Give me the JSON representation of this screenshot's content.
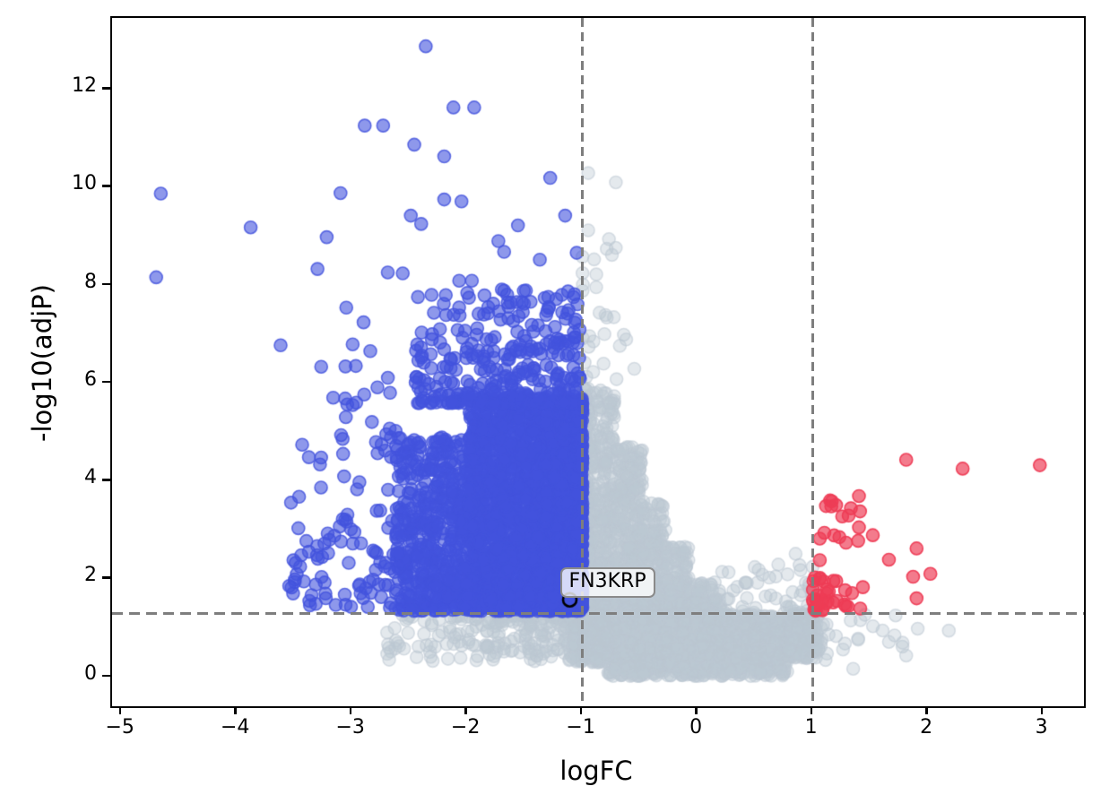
{
  "chart_data": {
    "type": "scatter",
    "title": "",
    "xlabel": "logFC",
    "ylabel": "-log10(adjP)",
    "xlim": [
      -5.083,
      3.353
    ],
    "ylim": [
      -0.595,
      13.47
    ],
    "grid": false,
    "legend": "none",
    "x_tick_values": [
      -5,
      -4,
      -3,
      -2,
      -1,
      0,
      1,
      2,
      3
    ],
    "x_tick_labels": [
      "−5",
      "−4",
      "−3",
      "−2",
      "−1",
      "0",
      "1",
      "2",
      "3"
    ],
    "y_tick_values": [
      0,
      2,
      4,
      6,
      8,
      10,
      12
    ],
    "y_tick_labels": [
      "0",
      "2",
      "4",
      "6",
      "8",
      "10",
      "12"
    ],
    "thresholds": {
      "vertical_logfc": [
        -1,
        1
      ],
      "horizontal_neglog10_adjp": 1.301,
      "line_color": "#7e7e7e",
      "line_style": "dashed"
    },
    "annotation": {
      "label": "FN3KRP",
      "x": -1.11,
      "y": 1.58,
      "marker": "open-black-circle"
    },
    "marker_radius_px": 7,
    "colors": {
      "down_regulated": "#4353dd",
      "up_regulated": "#ee3c55",
      "non_significant": "#bcc7d2",
      "axes": "#000000"
    },
    "series": [
      {
        "name": "non-significant",
        "color": "#bcc7d2",
        "fill_alpha": 0.4,
        "edge_alpha": 0.55,
        "clusters": [
          {
            "n": 500,
            "x": [
              -1.0,
              -0.72
            ],
            "y": [
              1.3,
              5.9
            ],
            "xexp": 1.3,
            "xdir": "min",
            "yexp": 1.55,
            "ydir": "min"
          },
          {
            "n": 330,
            "x": [
              -0.72,
              -0.48
            ],
            "y": [
              1.3,
              4.7
            ],
            "xexp": 1.0,
            "xdir": "min",
            "yexp": 1.5,
            "ydir": "min"
          },
          {
            "n": 200,
            "x": [
              -0.48,
              -0.28
            ],
            "y": [
              1.3,
              3.6
            ],
            "xexp": 1.0,
            "xdir": "min",
            "yexp": 1.5,
            "ydir": "min"
          },
          {
            "n": 130,
            "x": [
              -0.28,
              -0.08
            ],
            "y": [
              1.3,
              2.7
            ],
            "xexp": 1.0,
            "xdir": "min",
            "yexp": 1.4,
            "ydir": "min"
          },
          {
            "n": 80,
            "x": [
              -0.08,
              0.2
            ],
            "y": [
              1.3,
              1.95
            ],
            "xexp": 1.0,
            "xdir": "min",
            "yexp": 1.3,
            "ydir": "min"
          },
          {
            "n": 26,
            "x": [
              -1.0,
              -0.5
            ],
            "y": [
              5.9,
              9.3
            ],
            "xexp": 1.8,
            "xdir": "min",
            "yexp": 1.6,
            "ydir": "min"
          },
          {
            "n": 1300,
            "x": [
              -0.78,
              0.78
            ],
            "y": [
              0.02,
              1.28
            ],
            "xexp": 1.0,
            "xdir": "min",
            "yexp": 1.0,
            "ydir": "min"
          },
          {
            "n": 300,
            "x": [
              -1.06,
              -0.78
            ],
            "y": [
              0.3,
              1.28
            ],
            "xexp": 1.0,
            "xdir": "max",
            "yexp": 1.2,
            "ydir": "max"
          },
          {
            "n": 230,
            "x": [
              0.78,
              1.04
            ],
            "y": [
              0.38,
              1.28
            ],
            "xexp": 1.0,
            "xdir": "min",
            "yexp": 1.2,
            "ydir": "max"
          },
          {
            "n": 240,
            "x": [
              -2.7,
              -1.06
            ],
            "y": [
              0.3,
              1.28
            ],
            "xexp": 2.0,
            "xdir": "max",
            "yexp": 1.4,
            "ydir": "max"
          },
          {
            "n": 48,
            "x": [
              0.2,
              1.0
            ],
            "y": [
              1.3,
              2.35
            ],
            "xexp": 2.0,
            "xdir": "max",
            "yexp": 1.5,
            "ydir": "min"
          },
          {
            "n": 26,
            "x": [
              1.04,
              1.8
            ],
            "y": [
              0.45,
              1.28
            ],
            "xexp": 1.6,
            "xdir": "min",
            "yexp": 1.0,
            "ydir": "min"
          }
        ],
        "points": [
          [
            -0.95,
            10.3
          ],
          [
            -0.71,
            10.11
          ],
          [
            -0.95,
            9.13
          ],
          [
            -0.77,
            8.95
          ],
          [
            1.91,
            0.99
          ],
          [
            2.18,
            0.95
          ],
          [
            1.66,
            0.72
          ],
          [
            1.81,
            0.44
          ],
          [
            1.11,
            0.35
          ],
          [
            1.35,
            0.17
          ],
          [
            0.85,
            2.52
          ],
          [
            0.7,
            2.3
          ],
          [
            0.78,
            2.1
          ],
          [
            -0.62,
            6.9
          ],
          [
            -0.8,
            7.4
          ],
          [
            -0.55,
            6.3
          ]
        ]
      },
      {
        "name": "down-regulated",
        "color": "#4353dd",
        "fill_alpha": 0.6,
        "edge_alpha": 0.82,
        "clusters": [
          {
            "n": 2400,
            "x": [
              -1.98,
              -1.0
            ],
            "y": [
              1.35,
              5.7
            ],
            "xexp": 1.4,
            "xdir": "max",
            "yexp": 1.35,
            "ydir": "min"
          },
          {
            "n": 550,
            "x": [
              -2.62,
              -1.95
            ],
            "y": [
              1.35,
              4.9
            ],
            "xexp": 1.2,
            "xdir": "max",
            "yexp": 1.3,
            "ydir": "min"
          },
          {
            "n": 330,
            "x": [
              -2.45,
              -1.02
            ],
            "y": [
              5.6,
              7.9
            ],
            "xexp": 1.1,
            "xdir": "max",
            "yexp": 2.0,
            "ydir": "min"
          },
          {
            "n": 120,
            "x": [
              -3.55,
              -2.6
            ],
            "y": [
              1.4,
              6.8
            ],
            "xexp": 1.3,
            "xdir": "max",
            "yexp": 1.5,
            "ydir": "min"
          }
        ],
        "points": [
          [
            -2.36,
            12.89
          ],
          [
            -2.89,
            11.27
          ],
          [
            -2.73,
            11.27
          ],
          [
            -2.12,
            11.64
          ],
          [
            -1.94,
            11.64
          ],
          [
            -2.46,
            10.88
          ],
          [
            -2.2,
            10.64
          ],
          [
            -1.28,
            10.2
          ],
          [
            -4.66,
            9.88
          ],
          [
            -3.1,
            9.89
          ],
          [
            -2.2,
            9.76
          ],
          [
            -2.05,
            9.72
          ],
          [
            -3.88,
            9.19
          ],
          [
            -2.49,
            9.43
          ],
          [
            -2.4,
            9.26
          ],
          [
            -1.56,
            9.23
          ],
          [
            -3.22,
            8.99
          ],
          [
            -1.73,
            8.91
          ],
          [
            -1.68,
            8.69
          ],
          [
            -3.3,
            8.34
          ],
          [
            -2.69,
            8.27
          ],
          [
            -2.56,
            8.25
          ],
          [
            -2.31,
            7.81
          ],
          [
            -2.07,
            8.1
          ],
          [
            -1.96,
            8.1
          ],
          [
            -1.37,
            8.53
          ],
          [
            -1.15,
            9.43
          ],
          [
            -1.05,
            8.67
          ],
          [
            -4.7,
            8.17
          ],
          [
            -3.62,
            6.78
          ],
          [
            -3.05,
            7.55
          ],
          [
            -2.0,
            7.85
          ],
          [
            -1.7,
            7.92
          ],
          [
            -2.9,
            7.25
          ]
        ]
      },
      {
        "name": "up-regulated",
        "color": "#ee3c55",
        "fill_alpha": 0.68,
        "edge_alpha": 0.95,
        "clusters": [
          {
            "n": 36,
            "x": [
              1.0,
              1.45
            ],
            "y": [
              1.35,
              2.05
            ],
            "xexp": 1.7,
            "xdir": "min",
            "yexp": 1.5,
            "ydir": "min"
          },
          {
            "n": 8,
            "x": [
              1.04,
              1.5
            ],
            "y": [
              2.7,
              3.6
            ],
            "xexp": 1.0,
            "xdir": "min",
            "yexp": 1.0,
            "ydir": "min"
          }
        ],
        "points": [
          [
            1.81,
            4.44
          ],
          [
            2.3,
            4.26
          ],
          [
            2.97,
            4.33
          ],
          [
            1.9,
            2.63
          ],
          [
            1.66,
            2.4
          ],
          [
            2.02,
            2.11
          ],
          [
            1.87,
            2.05
          ],
          [
            1.9,
            1.61
          ],
          [
            1.4,
            3.7
          ],
          [
            1.15,
            3.61
          ],
          [
            1.16,
            3.49
          ],
          [
            1.33,
            3.45
          ],
          [
            1.31,
            3.3
          ],
          [
            1.4,
            3.06
          ],
          [
            1.1,
            2.95
          ],
          [
            1.06,
            2.83
          ],
          [
            1.23,
            2.86
          ],
          [
            1.06,
            2.39
          ],
          [
            1.52,
            2.9
          ]
        ]
      }
    ]
  }
}
